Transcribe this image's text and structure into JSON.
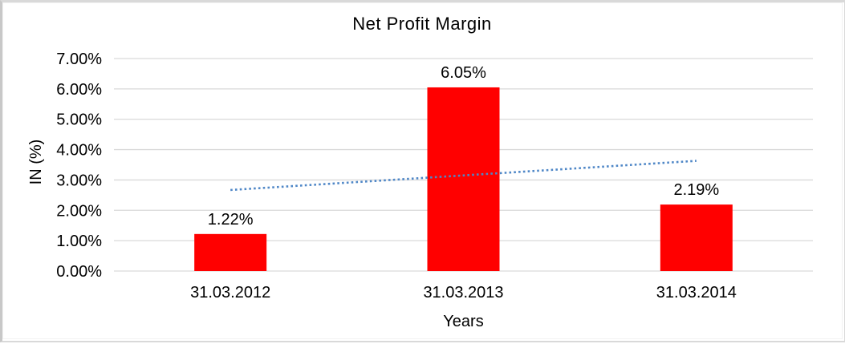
{
  "chart_data": {
    "type": "bar",
    "title": "Net Profit Margin",
    "xlabel": "Years",
    "ylabel": "IN (%)",
    "categories": [
      "31.03.2012",
      "31.03.2013",
      "31.03.2014"
    ],
    "values": [
      1.22,
      6.05,
      2.19
    ],
    "data_labels": [
      "1.22%",
      "6.05%",
      "2.19%"
    ],
    "ylim": [
      0,
      7
    ],
    "y_tick_labels": [
      "0.00%",
      "1.00%",
      "2.00%",
      "3.00%",
      "4.00%",
      "5.00%",
      "6.00%",
      "7.00%"
    ],
    "grid": true,
    "legend": "none",
    "bar_color": "#ff0000",
    "gridline_color": "#d9d9d9",
    "text_color": "#000000",
    "trendline": {
      "type": "linear",
      "style": "dotted",
      "color": "#4f87c7",
      "start_value": 2.67,
      "end_value": 3.63
    }
  }
}
